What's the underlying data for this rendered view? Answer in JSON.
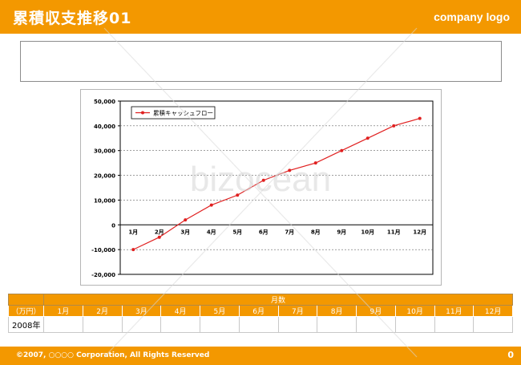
{
  "header": {
    "title": "累積収支推移01",
    "logo": "company logo"
  },
  "table": {
    "group_header": "月数",
    "unit_label": "（万円）",
    "months": [
      "1月",
      "2月",
      "3月",
      "4月",
      "5月",
      "6月",
      "7月",
      "8月",
      "9月",
      "10月",
      "11月",
      "12月"
    ],
    "rows": [
      {
        "label": "2008年",
        "values": [
          "",
          "",
          "",
          "",
          "",
          "",
          "",
          "",
          "",
          "",
          "",
          ""
        ]
      }
    ]
  },
  "footer": {
    "copyright": "©2007, ○○○○ Corporation, All Rights Reserved",
    "page": "0"
  },
  "watermark": {
    "text": "bizocean"
  },
  "chart_data": {
    "type": "line",
    "categories": [
      "1月",
      "2月",
      "3月",
      "4月",
      "5月",
      "6月",
      "7月",
      "8月",
      "9月",
      "10月",
      "11月",
      "12月"
    ],
    "series": [
      {
        "name": "累積キャッシュフロー",
        "values": [
          -10000,
          -5000,
          2000,
          8000,
          12000,
          18000,
          22000,
          25000,
          30000,
          35000,
          40000,
          43000
        ]
      }
    ],
    "ylim": [
      -20000,
      50000
    ],
    "yticks": [
      "50,000",
      "40,000",
      "30,000",
      "20,000",
      "10,000",
      "0",
      "-10,000",
      "-20,000"
    ],
    "ytick_values": [
      50000,
      40000,
      30000,
      20000,
      10000,
      0,
      -10000,
      -20000
    ],
    "grid": true,
    "legend_position": "top-left",
    "line_color": "#e02020"
  }
}
